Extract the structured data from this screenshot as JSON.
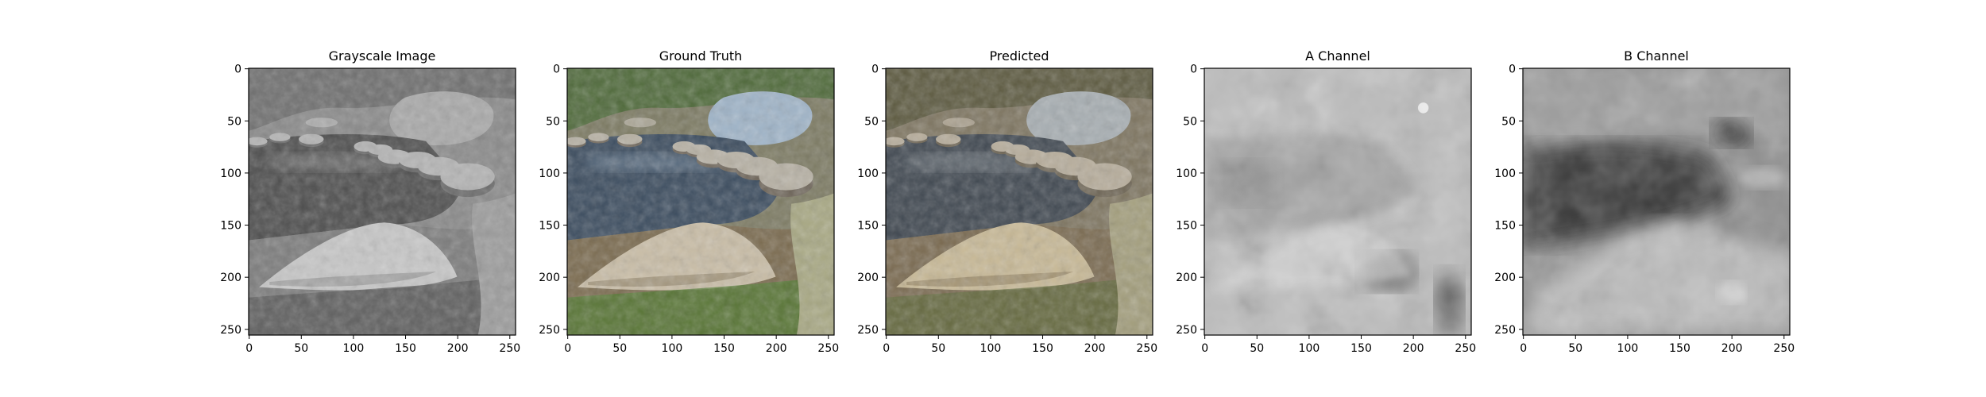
{
  "figure": {
    "panels": [
      {
        "title": "Grayscale Image",
        "kind": "grayscale"
      },
      {
        "title": "Ground Truth",
        "kind": "truth"
      },
      {
        "title": "Predicted",
        "kind": "predicted"
      },
      {
        "title": "A Channel",
        "kind": "a_channel"
      },
      {
        "title": "B Channel",
        "kind": "b_channel"
      }
    ],
    "axes": {
      "x_ticks": [
        "0",
        "50",
        "100",
        "150",
        "200",
        "250"
      ],
      "y_ticks": [
        "0",
        "50",
        "100",
        "150",
        "200",
        "250"
      ],
      "tick_values": [
        0,
        50,
        100,
        150,
        200,
        250
      ],
      "image_size": 256
    }
  }
}
